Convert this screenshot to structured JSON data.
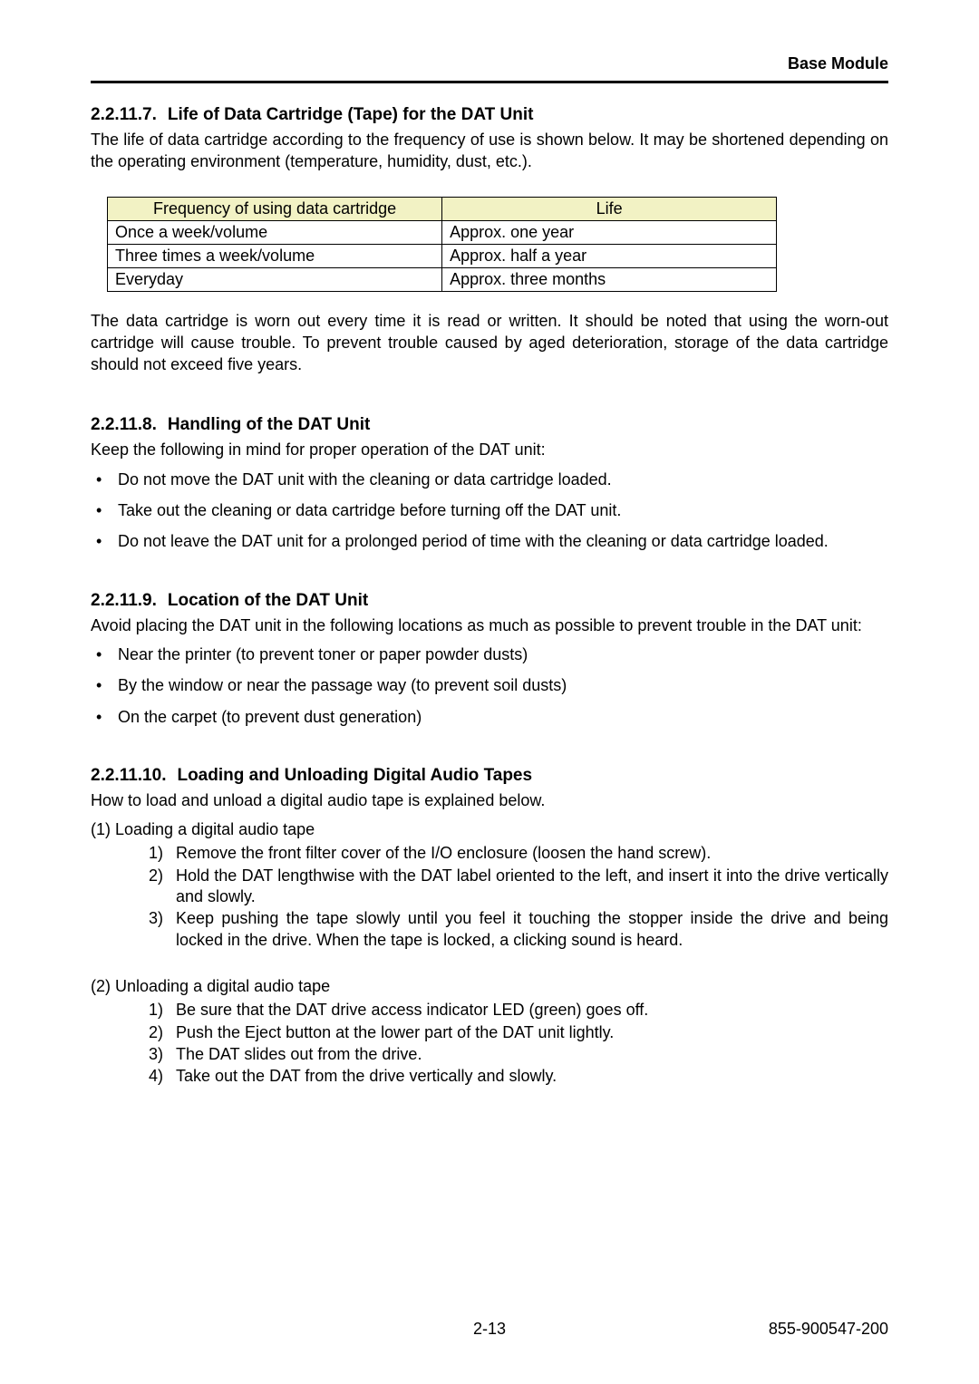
{
  "page": {
    "header_right": "Base Module",
    "footer_center": "2-13",
    "footer_right": "855-900547-200"
  },
  "colors": {
    "table_header_bg": "#f2f2c4",
    "table_border": "#000000",
    "text": "#000000",
    "background": "#ffffff"
  },
  "s1": {
    "num": "2.2.11.7.",
    "title": "Life of Data Cartridge (Tape) for the DAT Unit",
    "p1": "The life of data cartridge according to the frequency of use is shown below. It may be shortened depending on the operating environment (temperature, humidity, dust, etc.).",
    "p2": "The data cartridge is worn out every time it is read or written. It should be noted that using the worn-out cartridge will cause trouble. To prevent trouble caused by aged deterioration, storage of the data cartridge should not exceed five years."
  },
  "table": {
    "col1_header": "Frequency of using data cartridge",
    "col2_header": "Life",
    "rows": [
      {
        "c1": "Once a week/volume",
        "c2": "Approx. one year"
      },
      {
        "c1": "Three times a week/volume",
        "c2": "Approx. half a year"
      },
      {
        "c1": "Everyday",
        "c2": "Approx. three months"
      }
    ],
    "col1_width_pct": 50,
    "col2_width_pct": 50
  },
  "s2": {
    "num": "2.2.11.8.",
    "title": "Handling of the DAT Unit",
    "p1": "Keep the following in mind for proper operation of the DAT unit:",
    "bullets": [
      "Do not move the DAT unit with the cleaning or data cartridge loaded.",
      "Take out the cleaning or data cartridge before turning off the DAT unit.",
      "Do not leave the DAT unit for a prolonged period of time with the cleaning or data cartridge loaded."
    ]
  },
  "s3": {
    "num": "2.2.11.9.",
    "title": "Location of the DAT Unit",
    "p1": "Avoid placing the DAT unit in the following locations as much as possible to prevent trouble in the DAT unit:",
    "bullets": [
      "Near the printer (to prevent toner or paper powder dusts)",
      "By the window or near the passage way (to prevent soil dusts)",
      "On the carpet (to prevent dust generation)"
    ]
  },
  "s4": {
    "num": "2.2.11.10.",
    "title": "Loading and Unloading Digital Audio Tapes",
    "p1": "How to load and unload a digital audio tape is explained below.",
    "group1_label": "(1)   Loading a digital audio tape",
    "group1_steps": [
      {
        "n": "1)",
        "t": "Remove the front filter cover of the I/O enclosure (loosen the hand screw)."
      },
      {
        "n": "2)",
        "t": "Hold the DAT lengthwise with the DAT label oriented to the left, and insert it into the drive vertically and slowly."
      },
      {
        "n": "3)",
        "t": "Keep pushing the tape slowly until you feel it touching the stopper inside the drive and being locked in the drive. When the tape is locked, a clicking sound is heard."
      }
    ],
    "group2_label": "(2)   Unloading a digital audio tape",
    "group2_steps": [
      {
        "n": "1)",
        "t": "Be sure that the DAT drive access indicator LED (green) goes off."
      },
      {
        "n": "2)",
        "t": "Push the Eject button at the lower part of the DAT unit lightly."
      },
      {
        "n": "3)",
        "t": "The DAT slides out from the drive."
      },
      {
        "n": "4)",
        "t": "Take out the DAT from the drive vertically and slowly."
      }
    ]
  }
}
